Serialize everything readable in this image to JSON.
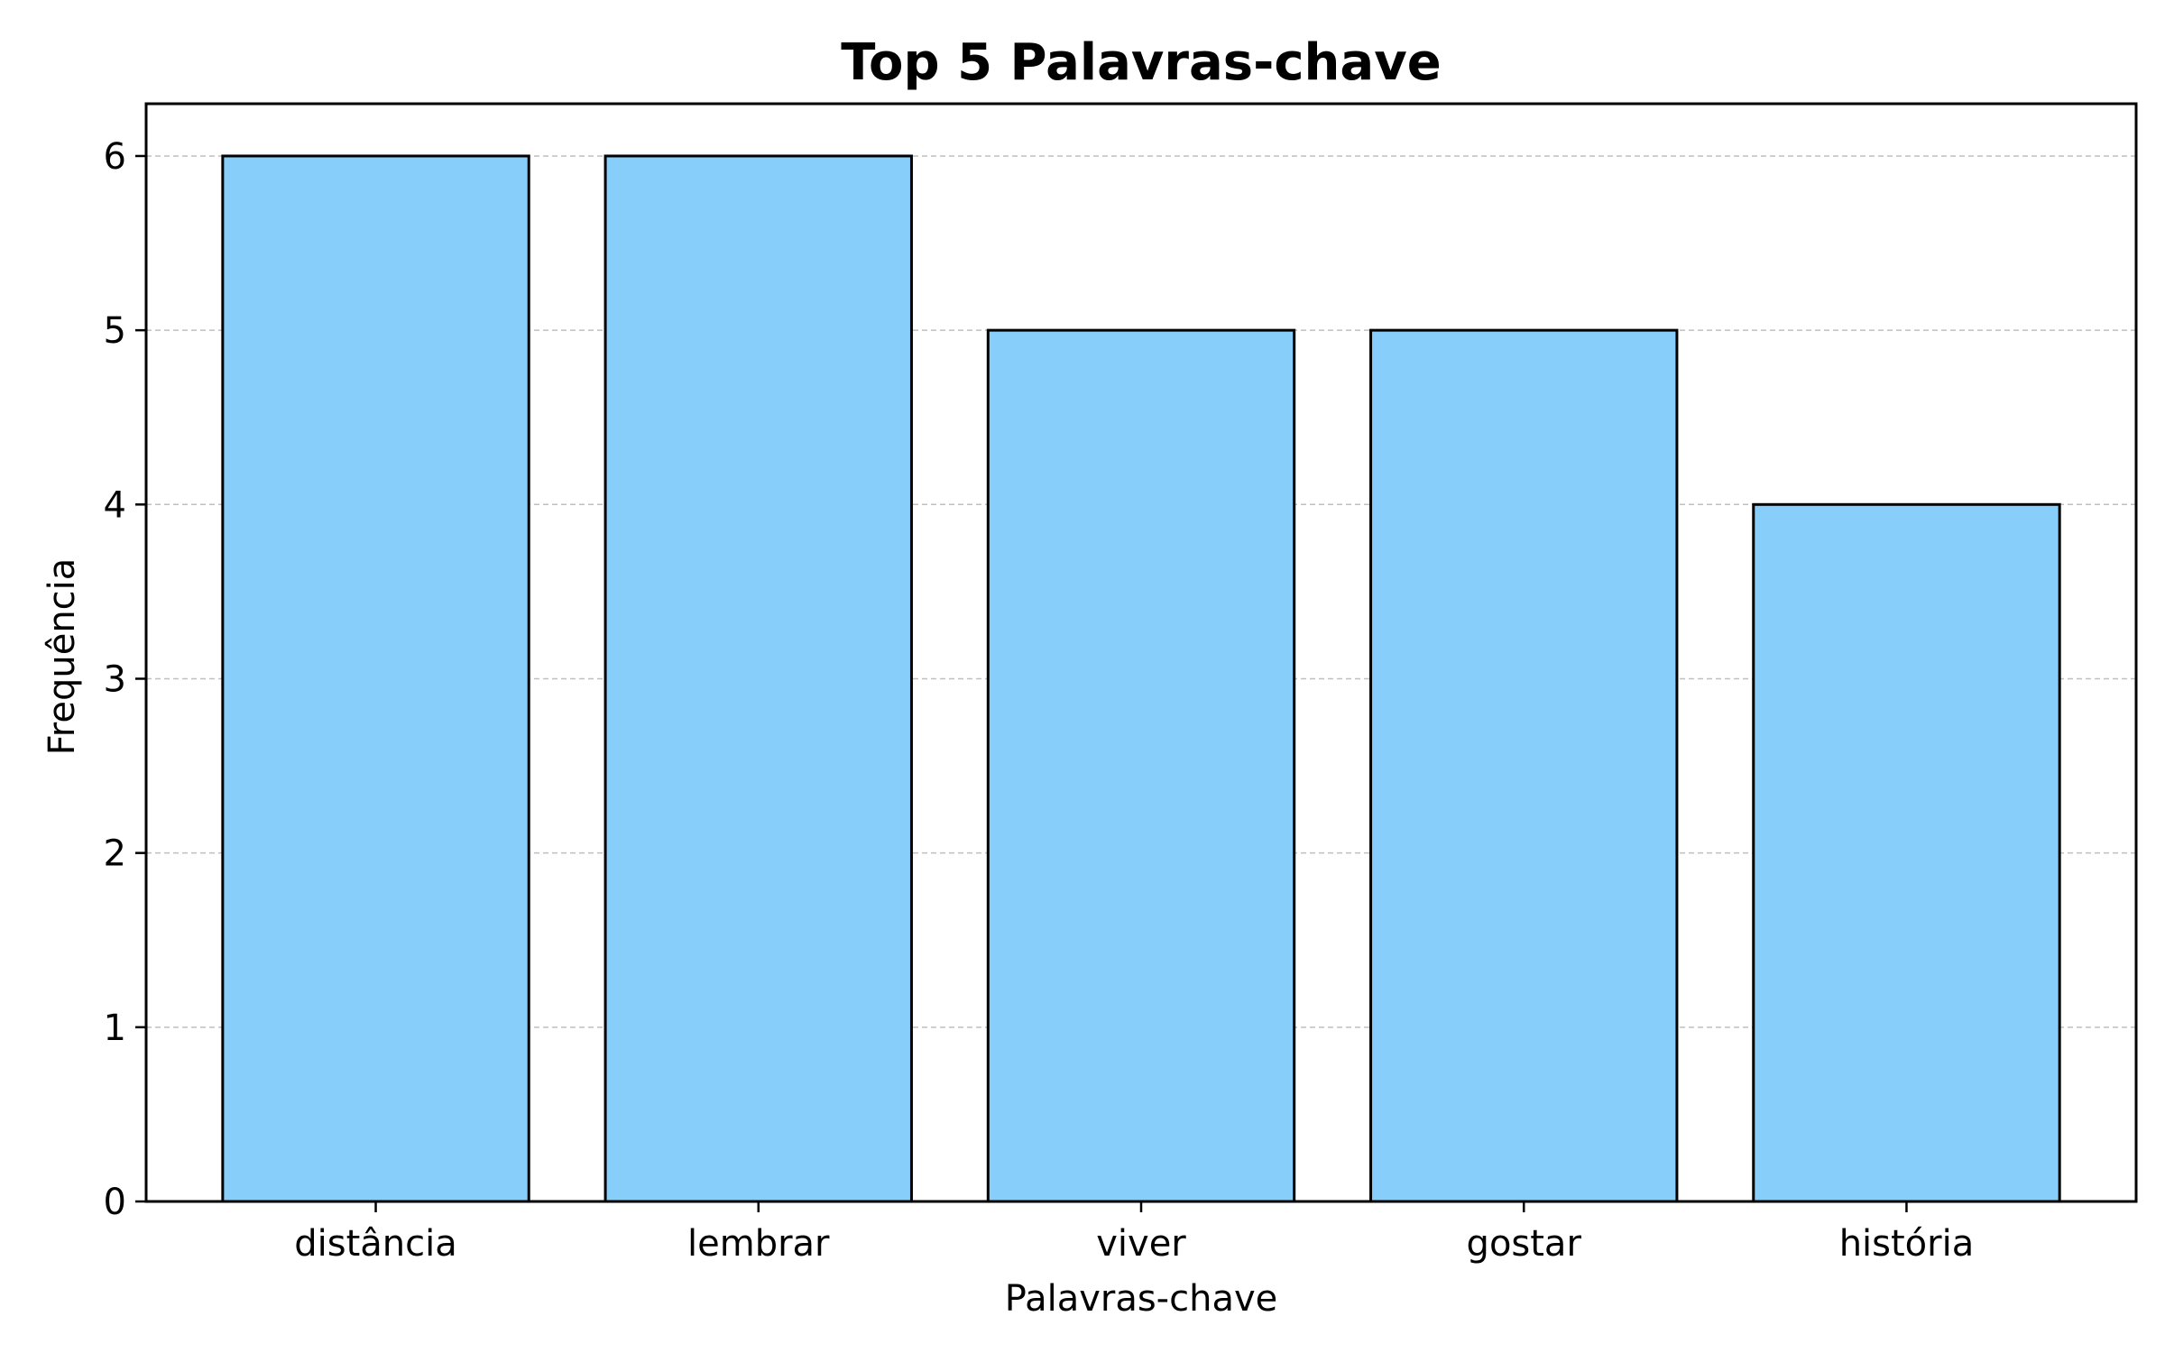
{
  "chart_data": {
    "type": "bar",
    "title": "Top 5 Palavras-chave",
    "xlabel": "Palavras-chave",
    "ylabel": "Frequência",
    "categories": [
      "distância",
      "lembrar",
      "viver",
      "gostar",
      "história"
    ],
    "values": [
      6,
      6,
      5,
      5,
      4
    ],
    "ylim": [
      0,
      6.3
    ],
    "yticks": [
      0,
      1,
      2,
      3,
      4,
      5,
      6
    ],
    "grid": "y-dashed",
    "legend": "none",
    "bar_color": "#87CEFA",
    "bar_edge_color": "#000000"
  }
}
